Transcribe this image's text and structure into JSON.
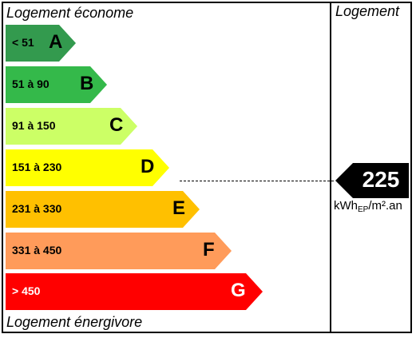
{
  "captions": {
    "top": "Logement économe",
    "bottom": "Logement énergivore",
    "column_header": "Logement"
  },
  "bands": [
    {
      "letter": "A",
      "range": "< 51",
      "color": "#339a4e"
    },
    {
      "letter": "B",
      "range": "51 à 90",
      "color": "#34b94a"
    },
    {
      "letter": "C",
      "range": "91 à 150",
      "color": "#ccff66"
    },
    {
      "letter": "D",
      "range": "151 à 230",
      "color": "#ffff00"
    },
    {
      "letter": "E",
      "range": "231 à 330",
      "color": "#ffc000"
    },
    {
      "letter": "F",
      "range": "331 à 450",
      "color": "#ff9b5a"
    },
    {
      "letter": "G",
      "range": "> 450",
      "color": "#ff0000"
    }
  ],
  "indicator": {
    "value": "225",
    "band": "D",
    "color": "#000000",
    "unit_main": "kWh",
    "unit_sub": "EP",
    "unit_tail": "/m².an"
  }
}
